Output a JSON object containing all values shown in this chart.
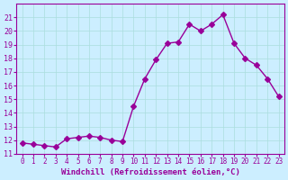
{
  "x": [
    0,
    1,
    2,
    3,
    4,
    5,
    6,
    7,
    8,
    9,
    10,
    11,
    12,
    13,
    14,
    15,
    16,
    17,
    18,
    19,
    20,
    21,
    22,
    23
  ],
  "y": [
    11.8,
    11.7,
    11.6,
    11.5,
    12.1,
    12.2,
    12.3,
    12.2,
    12.0,
    11.9,
    14.5,
    16.5,
    17.9,
    19.1,
    19.2,
    20.5,
    20.0,
    20.5,
    21.2,
    19.1,
    18.0,
    17.5,
    16.5,
    15.2
  ],
  "line_color": "#990099",
  "marker": "D",
  "marker_size": 3,
  "bg_color": "#cceeff",
  "grid_color": "#aadddd",
  "xlabel": "Windchill (Refroidissement éolien,°C)",
  "xlabel_color": "#990099",
  "tick_color": "#990099",
  "ylim": [
    11,
    22
  ],
  "xlim": [
    -0.5,
    23.5
  ],
  "yticks": [
    11,
    12,
    13,
    14,
    15,
    16,
    17,
    18,
    19,
    20,
    21
  ],
  "xticks": [
    0,
    1,
    2,
    3,
    4,
    5,
    6,
    7,
    8,
    9,
    10,
    11,
    12,
    13,
    14,
    15,
    16,
    17,
    18,
    19,
    20,
    21,
    22,
    23
  ]
}
